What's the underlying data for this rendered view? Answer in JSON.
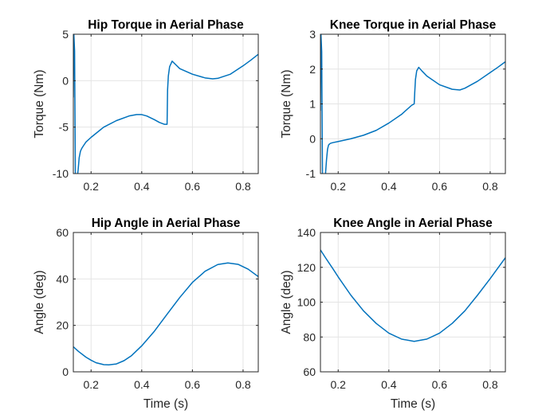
{
  "colors": {
    "series": "#0072bd",
    "axes": "#262626",
    "grid": "#e4e4e4"
  },
  "chart_data": [
    {
      "type": "line",
      "title": "Hip Torque in Aerial Phase",
      "xlabel": "",
      "ylabel": "Torque (Nm)",
      "xlim": [
        0.13,
        0.86
      ],
      "ylim": [
        -10,
        5
      ],
      "xticks": [
        0.2,
        0.4,
        0.6,
        0.8
      ],
      "xtick_labels": [
        "0.2",
        "0.4",
        "0.6",
        "0.8"
      ],
      "yticks": [
        -10,
        -5,
        0,
        5
      ],
      "ytick_labels": [
        "-10",
        "-5",
        "0",
        "5"
      ],
      "grid": true,
      "series": [
        {
          "x": [
            0.13,
            0.132,
            0.135,
            0.138,
            0.141,
            0.145,
            0.149,
            0.153,
            0.158,
            0.163,
            0.17,
            0.18,
            0.2,
            0.25,
            0.3,
            0.35,
            0.38,
            0.4,
            0.42,
            0.45,
            0.47,
            0.49,
            0.5,
            0.502,
            0.505,
            0.51,
            0.52,
            0.535,
            0.55,
            0.6,
            0.65,
            0.68,
            0.7,
            0.75,
            0.8,
            0.83,
            0.858,
            0.86
          ],
          "y": [
            -1.8,
            5,
            3.2,
            -10,
            -10.5,
            -10.5,
            -9.6,
            -8.3,
            -7.6,
            -7.3,
            -7.0,
            -6.6,
            -6.1,
            -5.0,
            -4.3,
            -3.8,
            -3.65,
            -3.65,
            -3.8,
            -4.2,
            -4.5,
            -4.7,
            -4.7,
            -1.0,
            0.5,
            1.5,
            2.1,
            1.7,
            1.3,
            0.7,
            0.3,
            0.2,
            0.25,
            0.7,
            1.6,
            2.2,
            2.8,
            2.8
          ]
        }
      ]
    },
    {
      "type": "line",
      "title": "Knee Torque in Aerial Phase",
      "xlabel": "",
      "ylabel": "Torque (Nm)",
      "xlim": [
        0.13,
        0.86
      ],
      "ylim": [
        -1,
        3
      ],
      "xticks": [
        0.2,
        0.4,
        0.6,
        0.8
      ],
      "xtick_labels": [
        "0.2",
        "0.4",
        "0.6",
        "0.8"
      ],
      "yticks": [
        -1,
        0,
        1,
        2,
        3
      ],
      "ytick_labels": [
        "-1",
        "0",
        "1",
        "2",
        "3"
      ],
      "grid": true,
      "series": [
        {
          "x": [
            0.13,
            0.132,
            0.135,
            0.138,
            0.142,
            0.146,
            0.15,
            0.154,
            0.158,
            0.162,
            0.166,
            0.17,
            0.18,
            0.2,
            0.25,
            0.3,
            0.35,
            0.4,
            0.45,
            0.49,
            0.5,
            0.502,
            0.505,
            0.51,
            0.518,
            0.53,
            0.55,
            0.6,
            0.65,
            0.68,
            0.7,
            0.75,
            0.8,
            0.83,
            0.858,
            0.86
          ],
          "y": [
            0.8,
            3,
            2.5,
            -1.05,
            -1.15,
            -1.15,
            -1.0,
            -0.6,
            -0.3,
            -0.18,
            -0.15,
            -0.13,
            -0.11,
            -0.08,
            0.0,
            0.1,
            0.24,
            0.45,
            0.7,
            0.96,
            1.0,
            1.3,
            1.7,
            1.95,
            2.05,
            1.95,
            1.8,
            1.55,
            1.42,
            1.4,
            1.45,
            1.65,
            1.9,
            2.05,
            2.2,
            2.2
          ]
        }
      ]
    },
    {
      "type": "line",
      "title": "Hip Angle in Aerial Phase",
      "xlabel": "Time (s)",
      "ylabel": "Angle (deg)",
      "xlim": [
        0.13,
        0.86
      ],
      "ylim": [
        0,
        60
      ],
      "xticks": [
        0.2,
        0.4,
        0.6,
        0.8
      ],
      "xtick_labels": [
        "0.2",
        "0.4",
        "0.6",
        "0.8"
      ],
      "yticks": [
        0,
        20,
        40,
        60
      ],
      "ytick_labels": [
        "0",
        "20",
        "40",
        "60"
      ],
      "grid": true,
      "series": [
        {
          "x": [
            0.13,
            0.15,
            0.18,
            0.2,
            0.22,
            0.25,
            0.27,
            0.3,
            0.33,
            0.36,
            0.4,
            0.45,
            0.5,
            0.55,
            0.6,
            0.65,
            0.7,
            0.74,
            0.78,
            0.82,
            0.86
          ],
          "y": [
            10.8,
            8.8,
            6.3,
            5.0,
            3.9,
            3.1,
            3.0,
            3.4,
            4.8,
            7.0,
            11.2,
            17.5,
            24.8,
            32.0,
            38.5,
            43.3,
            46.2,
            46.9,
            46.3,
            44.2,
            41.0
          ]
        }
      ]
    },
    {
      "type": "line",
      "title": "Knee Angle in Aerial Phase",
      "xlabel": "Time (s)",
      "ylabel": "Angle (deg)",
      "xlim": [
        0.13,
        0.86
      ],
      "ylim": [
        60,
        140
      ],
      "xticks": [
        0.2,
        0.4,
        0.6,
        0.8
      ],
      "xtick_labels": [
        "0.2",
        "0.4",
        "0.6",
        "0.8"
      ],
      "yticks": [
        60,
        80,
        100,
        120,
        140
      ],
      "ytick_labels": [
        "60",
        "80",
        "100",
        "120",
        "140"
      ],
      "grid": true,
      "series": [
        {
          "x": [
            0.13,
            0.15,
            0.18,
            0.2,
            0.25,
            0.3,
            0.35,
            0.4,
            0.45,
            0.5,
            0.55,
            0.6,
            0.65,
            0.7,
            0.75,
            0.8,
            0.86
          ],
          "y": [
            130,
            125.5,
            119,
            114.5,
            104,
            95,
            87.8,
            82.2,
            78.8,
            77.5,
            78.8,
            82.2,
            87.8,
            95,
            104,
            113.5,
            125.5
          ]
        }
      ]
    }
  ]
}
